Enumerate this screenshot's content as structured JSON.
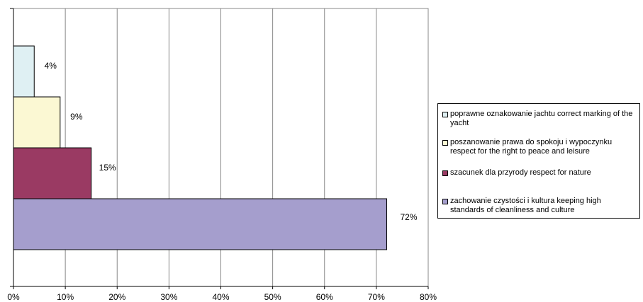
{
  "chart_data": {
    "type": "bar",
    "orientation": "horizontal",
    "title": "",
    "xlabel": "",
    "ylabel": "",
    "xlim": [
      0,
      80
    ],
    "x_ticks": [
      "0%",
      "10%",
      "20%",
      "30%",
      "40%",
      "50%",
      "60%",
      "70%",
      "80%"
    ],
    "grid": "vertical",
    "legend_position": "right",
    "series": [
      {
        "name": "poprawne oznakowanie jachtu correct marking of the yacht",
        "value": 4,
        "label": "4%",
        "color": "#dff0f3"
      },
      {
        "name": "poszanowanie prawa do spokoju i wypoczynku respect for the right to peace and leisure",
        "value": 9,
        "label": "9%",
        "color": "#fbf8d3"
      },
      {
        "name": "szacunek dla przyrody respect for nature",
        "value": 15,
        "label": "15%",
        "color": "#9a3a63"
      },
      {
        "name": "zachowanie czystości i kultura keeping high standards of cleanliness and culture",
        "value": 72,
        "label": "72%",
        "color": "#a59ecd"
      }
    ]
  }
}
